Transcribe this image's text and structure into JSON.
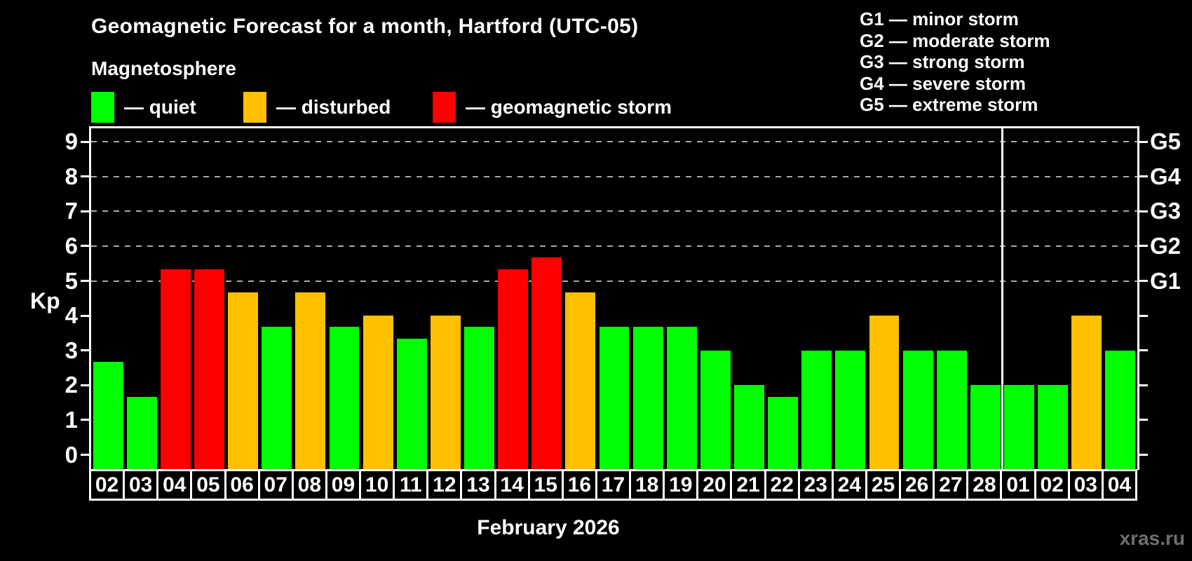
{
  "title": "Geomagnetic Forecast for a month, Hartford (UTC-05)",
  "subtitle": "Magnetosphere",
  "legend": {
    "items": [
      {
        "key": "quiet",
        "label": "— quiet",
        "color": "#00FF00"
      },
      {
        "key": "disturbed",
        "label": "— disturbed",
        "color": "#FFC000"
      },
      {
        "key": "storm",
        "label": "— geomagnetic storm",
        "color": "#FF0000"
      }
    ]
  },
  "g_legend": [
    "G1 — minor storm",
    "G2 — moderate storm",
    "G3 — strong storm",
    "G4 — severe storm",
    "G5 — extreme storm"
  ],
  "chart_data": {
    "type": "bar",
    "title": "Geomagnetic Forecast for a month, Hartford (UTC-05)",
    "ylabel": "Kp",
    "xlabel": "February 2026",
    "ylim": [
      0,
      9
    ],
    "yticks": [
      0,
      1,
      2,
      3,
      4,
      5,
      6,
      7,
      8,
      9
    ],
    "grid_levels": [
      5,
      6,
      7,
      8,
      9
    ],
    "right_axis": [
      {
        "level": 5,
        "label": "G1"
      },
      {
        "level": 6,
        "label": "G2"
      },
      {
        "level": 7,
        "label": "G3"
      },
      {
        "level": 8,
        "label": "G4"
      },
      {
        "level": 9,
        "label": "G5"
      }
    ],
    "categories": [
      "02",
      "03",
      "04",
      "05",
      "06",
      "07",
      "08",
      "09",
      "10",
      "11",
      "12",
      "13",
      "14",
      "15",
      "16",
      "17",
      "18",
      "19",
      "20",
      "21",
      "22",
      "23",
      "24",
      "25",
      "26",
      "27",
      "28",
      "01",
      "02",
      "03",
      "04"
    ],
    "values": [
      2.67,
      1.67,
      5.33,
      5.33,
      4.67,
      3.67,
      4.67,
      3.67,
      4.0,
      3.33,
      4.0,
      3.67,
      5.33,
      5.67,
      4.67,
      3.67,
      3.67,
      3.67,
      3.0,
      2.0,
      1.67,
      3.0,
      3.0,
      4.0,
      3.0,
      3.0,
      2.0,
      2.0,
      2.0,
      4.0,
      3.0
    ],
    "statuses": [
      "quiet",
      "quiet",
      "storm",
      "storm",
      "disturbed",
      "quiet",
      "disturbed",
      "quiet",
      "disturbed",
      "quiet",
      "disturbed",
      "quiet",
      "storm",
      "storm",
      "disturbed",
      "quiet",
      "quiet",
      "quiet",
      "quiet",
      "quiet",
      "quiet",
      "quiet",
      "quiet",
      "disturbed",
      "quiet",
      "quiet",
      "quiet",
      "quiet",
      "quiet",
      "disturbed",
      "quiet"
    ],
    "status_colors": {
      "quiet": "#00FF00",
      "disturbed": "#FFC000",
      "storm": "#FF0000"
    },
    "month_separator_after_index": 26,
    "legend_position": "top"
  },
  "footer": {
    "month_label": "February 2026",
    "watermark": "xras.ru"
  }
}
